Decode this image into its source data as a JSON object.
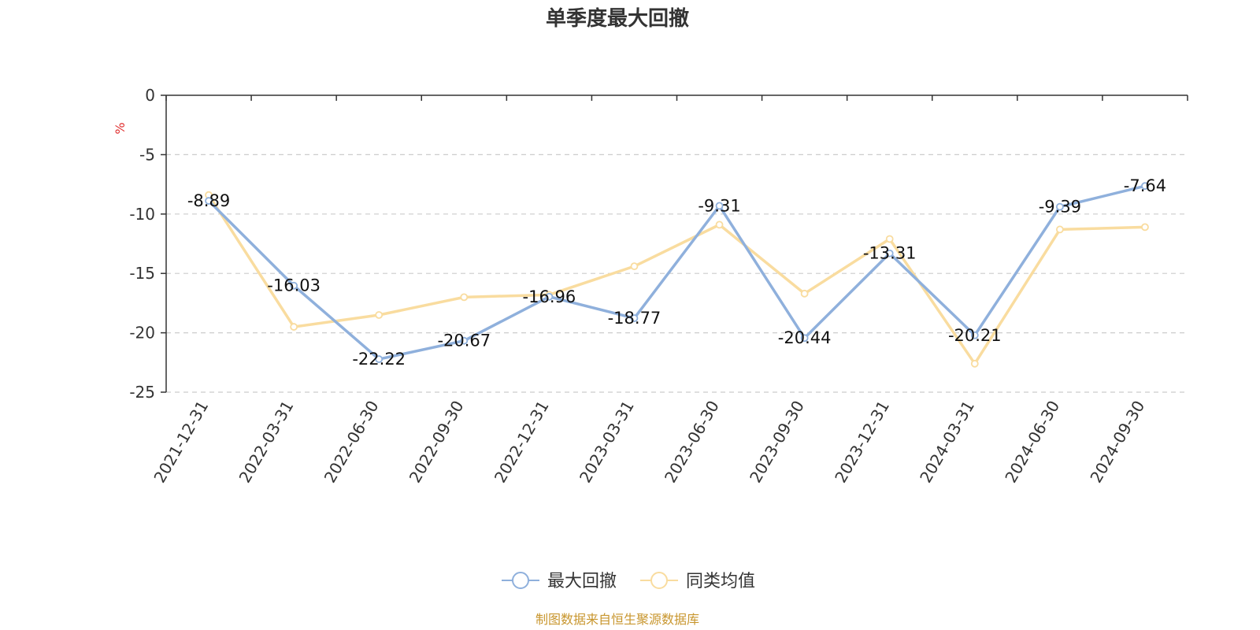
{
  "chart_data": {
    "type": "line",
    "title": "单季度最大回撤",
    "ylabel": "%",
    "xlabel": "",
    "categories": [
      "2021-12-31",
      "2022-03-31",
      "2022-06-30",
      "2022-09-30",
      "2022-12-31",
      "2023-03-31",
      "2023-06-30",
      "2023-09-30",
      "2023-12-31",
      "2024-03-31",
      "2024-06-30",
      "2024-09-30"
    ],
    "ylim": [
      -25,
      0
    ],
    "yticks": [
      0,
      -5,
      -10,
      -15,
      -20,
      -25
    ],
    "grid": true,
    "legend_position": "bottom",
    "series": [
      {
        "name": "最大回撤",
        "color": "#8fb0dc",
        "show_labels": true,
        "values": [
          -8.89,
          -16.03,
          -22.22,
          -20.67,
          -16.96,
          -18.77,
          -9.31,
          -20.44,
          -13.31,
          -20.21,
          -9.39,
          -7.64
        ],
        "labels": [
          "-8.89",
          "-16.03",
          "-22.22",
          "-20.67",
          "-16.96",
          "-18.77",
          "-9.31",
          "-20.44",
          "-13.31",
          "-20.21",
          "-9.39",
          "-7.64"
        ]
      },
      {
        "name": "同类均值",
        "color": "#f9dc9f",
        "show_labels": false,
        "values": [
          -8.4,
          -19.5,
          -18.5,
          -17.0,
          -16.8,
          -14.4,
          -10.9,
          -16.7,
          -12.1,
          -22.6,
          -11.3,
          -11.1
        ]
      }
    ],
    "source": "制图数据来自恒生聚源数据库",
    "source_color": "#c8962e",
    "unit_color": "#e03030"
  }
}
